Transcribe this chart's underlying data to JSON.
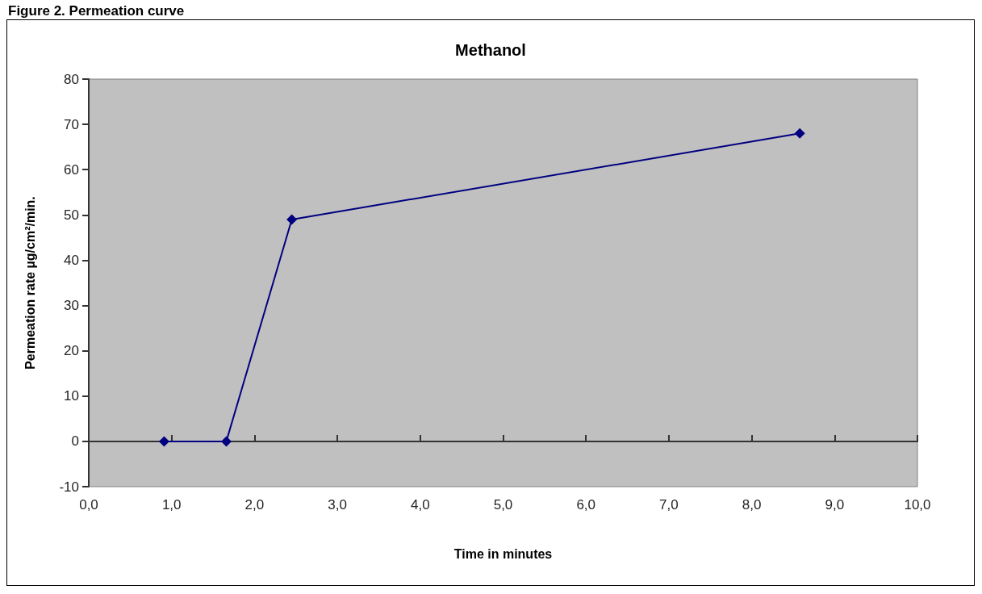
{
  "chart_data": {
    "type": "line",
    "title": "Figure 2. Permeation curve",
    "subtitle": "Methanol",
    "xlabel": "Time in minutes",
    "ylabel": "Permeation rate µg/cm²/min.",
    "x": [
      0.91,
      1.66,
      2.45,
      8.58
    ],
    "series": [
      {
        "color": "#000080",
        "values": [
          0,
          0,
          49,
          68
        ]
      }
    ],
    "xlim": [
      0,
      10
    ],
    "xticks": [
      {
        "value": 0,
        "label": "0,0"
      },
      {
        "value": 1,
        "label": "1,0"
      },
      {
        "value": 2,
        "label": "2,0"
      },
      {
        "value": 3,
        "label": "3,0"
      },
      {
        "value": 4,
        "label": "4,0"
      },
      {
        "value": 5,
        "label": "5,0"
      },
      {
        "value": 6,
        "label": "6,0"
      },
      {
        "value": 7,
        "label": "7,0"
      },
      {
        "value": 8,
        "label": "8,0"
      },
      {
        "value": 9,
        "label": "9,0"
      },
      {
        "value": 10,
        "label": "10,0"
      }
    ],
    "ylim": [
      -10,
      80
    ],
    "yticks": [
      -10,
      0,
      10,
      20,
      30,
      40,
      50,
      60,
      70,
      80
    ],
    "marker": "diamond",
    "line_style": "solid"
  }
}
